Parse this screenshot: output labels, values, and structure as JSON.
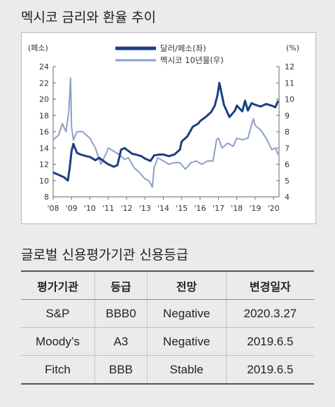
{
  "chart_title": "멕시코 금리와 환율 추이",
  "table_title": "글로벌 신용평가기관 신용등급",
  "chart_data": {
    "type": "line",
    "y_left_unit": "(페소)",
    "y_right_unit": "(%)",
    "y_left_range": [
      8,
      24
    ],
    "y_right_range": [
      4,
      12
    ],
    "y_left_ticks": [
      "8",
      "10",
      "12",
      "14",
      "16",
      "18",
      "20",
      "22",
      "24"
    ],
    "y_right_ticks": [
      "4",
      "5",
      "6",
      "7",
      "8",
      "9",
      "10",
      "11",
      "12"
    ],
    "x_range": [
      2008,
      2020.3
    ],
    "x_ticks": [
      "'08",
      "'09",
      "'10",
      "'11",
      "'12",
      "'13",
      "'14",
      "'15",
      "'16",
      "'17",
      "'18",
      "'19",
      "'20"
    ],
    "grid": false,
    "legend_position": "top-center",
    "series": [
      {
        "name": "달러/페소(좌)",
        "axis": "left",
        "color": "#1b3f82",
        "x": [
          2008.0,
          2008.3,
          2008.6,
          2008.8,
          2008.9,
          2009.0,
          2009.1,
          2009.15,
          2009.3,
          2009.5,
          2009.8,
          2010.0,
          2010.3,
          2010.5,
          2010.8,
          2011.0,
          2011.3,
          2011.5,
          2011.7,
          2011.9,
          2012.0,
          2012.3,
          2012.5,
          2012.8,
          2013.0,
          2013.3,
          2013.5,
          2013.8,
          2014.0,
          2014.3,
          2014.6,
          2014.9,
          2015.0,
          2015.3,
          2015.6,
          2015.9,
          2016.0,
          2016.3,
          2016.6,
          2016.8,
          2016.95,
          2017.05,
          2017.3,
          2017.6,
          2017.9,
          2018.0,
          2018.3,
          2018.45,
          2018.6,
          2018.8,
          2019.0,
          2019.3,
          2019.6,
          2019.9,
          2020.1,
          2020.25
        ],
        "values": [
          11.0,
          10.7,
          10.4,
          10.0,
          11.5,
          13.6,
          14.5,
          14.2,
          13.4,
          13.2,
          13.0,
          12.9,
          12.5,
          12.8,
          12.3,
          12.0,
          11.7,
          11.9,
          13.8,
          14.0,
          13.8,
          13.3,
          13.2,
          13.0,
          12.7,
          12.4,
          13.1,
          13.2,
          13.2,
          13.0,
          13.2,
          13.8,
          14.8,
          15.4,
          16.6,
          17.0,
          17.3,
          17.8,
          18.4,
          19.2,
          20.5,
          22.0,
          19.3,
          17.8,
          18.6,
          19.2,
          18.5,
          19.8,
          18.6,
          19.5,
          19.3,
          19.1,
          19.4,
          19.2,
          19.0,
          19.8
        ]
      },
      {
        "name": "멕시코 10년물(우)",
        "axis": "right",
        "color": "#8d9ec8",
        "x": [
          2008.0,
          2008.3,
          2008.5,
          2008.7,
          2008.85,
          2008.95,
          2009.0,
          2009.1,
          2009.3,
          2009.6,
          2010.0,
          2010.3,
          2010.6,
          2010.9,
          2011.0,
          2011.3,
          2011.6,
          2011.9,
          2012.1,
          2012.4,
          2012.7,
          2013.0,
          2013.2,
          2013.4,
          2013.5,
          2013.7,
          2014.0,
          2014.3,
          2014.6,
          2014.9,
          2015.2,
          2015.5,
          2015.8,
          2016.1,
          2016.4,
          2016.7,
          2016.9,
          2017.0,
          2017.2,
          2017.5,
          2017.8,
          2018.0,
          2018.3,
          2018.6,
          2018.9,
          2019.0,
          2019.3,
          2019.6,
          2019.9,
          2020.1,
          2020.25
        ],
        "values": [
          7.5,
          7.8,
          8.5,
          8.0,
          9.2,
          11.3,
          8.3,
          7.5,
          8.0,
          8.0,
          7.6,
          7.0,
          6.0,
          6.7,
          7.0,
          6.8,
          6.6,
          6.3,
          6.4,
          5.8,
          5.5,
          5.1,
          5.0,
          4.6,
          5.8,
          6.4,
          6.2,
          6.0,
          6.1,
          6.1,
          5.7,
          6.1,
          6.2,
          6.0,
          6.2,
          6.2,
          7.5,
          7.6,
          7.0,
          7.3,
          7.1,
          7.6,
          7.5,
          7.6,
          8.8,
          8.4,
          8.1,
          7.6,
          6.9,
          7.0,
          6.6
        ]
      }
    ]
  },
  "table": {
    "headers": [
      "평가기관",
      "등급",
      "전망",
      "변경일자"
    ],
    "rows": [
      [
        "S&P",
        "BBB0",
        "Negative",
        "2020.3.27"
      ],
      [
        "Moody’s",
        "A3",
        "Negative",
        "2019.6.5"
      ],
      [
        "Fitch",
        "BBB",
        "Stable",
        "2019.6.5"
      ]
    ]
  }
}
